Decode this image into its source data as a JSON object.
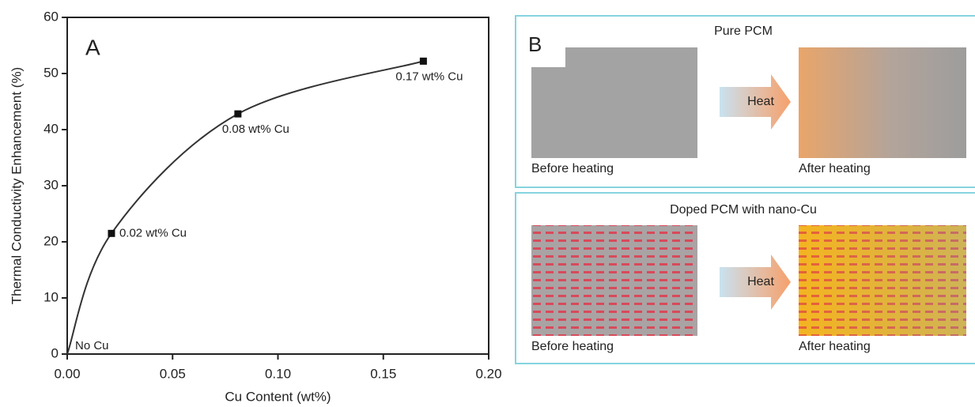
{
  "chart_data": {
    "type": "line",
    "panel_label": "A",
    "x": [
      0,
      0.021,
      0.081,
      0.169
    ],
    "values": [
      0,
      21.5,
      42.8,
      52.2
    ],
    "annotations": [
      "No Cu",
      "0.02 wt% Cu",
      "0.08 wt% Cu",
      "0.17 wt% Cu"
    ],
    "color": "#333333",
    "xlabel": "Cu Content (wt%)",
    "ylabel": "Thermal Conductivity Enhancement (%)",
    "xlim": [
      0,
      0.2
    ],
    "ylim": [
      0,
      60
    ],
    "xticks": [
      {
        "value": 0,
        "label": "0.00"
      },
      {
        "value": 0.05,
        "label": "0.05"
      },
      {
        "value": 0.1,
        "label": "0.10"
      },
      {
        "value": 0.15,
        "label": "0.15"
      },
      {
        "value": 0.2,
        "label": "0.20"
      }
    ],
    "yticks": [
      0,
      10,
      20,
      30,
      40,
      50,
      60
    ]
  },
  "panel_b": {
    "label": "B",
    "panels": [
      {
        "title": "Pure PCM",
        "before": "Before heating",
        "arrow": "Heat",
        "after": "After heating"
      },
      {
        "title": "Doped PCM with nano-Cu",
        "before": "Before heating",
        "arrow": "Heat",
        "after": "After heating"
      }
    ]
  }
}
